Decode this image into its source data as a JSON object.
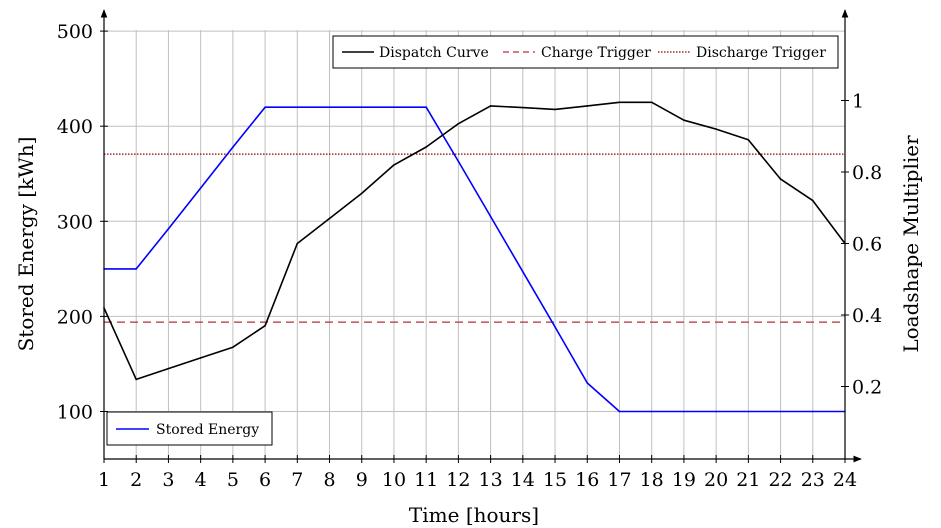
{
  "chart_data": {
    "type": "line",
    "x_label": "Time [hours]",
    "y_label_left": "Stored Energy [kWh]",
    "y_label_right": "Loadshape Multiplier",
    "x_ticks": [
      "1",
      "2",
      "3",
      "4",
      "5",
      "6",
      "7",
      "8",
      "9",
      "10",
      "11",
      "12",
      "13",
      "14",
      "15",
      "16",
      "17",
      "18",
      "19",
      "20",
      "21",
      "22",
      "23",
      "24"
    ],
    "y_left_ticks": [
      "100",
      "200",
      "300",
      "400",
      "500"
    ],
    "y_right_ticks": [
      "0.2",
      "0.4",
      "0.6",
      "0.8",
      "1"
    ],
    "x_range": [
      1,
      24
    ],
    "y_left_range": [
      50,
      500
    ],
    "y_right_range": [
      0.1,
      1.2
    ],
    "grid": true,
    "series": [
      {
        "name": "Stored Energy",
        "axis": "left",
        "color": "#0000ff",
        "x": [
          1,
          2,
          3,
          4,
          5,
          6,
          7,
          8,
          9,
          10,
          11,
          12,
          13,
          14,
          15,
          16,
          17,
          18,
          19,
          20,
          21,
          22,
          23,
          24
        ],
        "values": [
          250,
          250,
          292,
          335,
          378,
          420,
          420,
          420,
          420,
          420,
          420,
          363,
          305,
          247,
          189,
          130,
          100,
          100,
          100,
          100,
          100,
          100,
          100,
          100
        ]
      },
      {
        "name": "Dispatch Curve",
        "axis": "right",
        "color": "#000000",
        "x": [
          1,
          2,
          3,
          4,
          5,
          6,
          7,
          8,
          9,
          10,
          11,
          12,
          13,
          14,
          15,
          16,
          17,
          18,
          19,
          20,
          21,
          22,
          23,
          24
        ],
        "values": [
          0.42,
          0.22,
          0.25,
          0.28,
          0.31,
          0.37,
          0.6,
          0.67,
          0.74,
          0.82,
          0.87,
          0.935,
          0.985,
          0.98,
          0.975,
          0.985,
          0.995,
          0.995,
          0.945,
          0.92,
          0.89,
          0.78,
          0.72,
          0.6
        ]
      }
    ],
    "thresholds": [
      {
        "name": "Charge Trigger",
        "axis": "right",
        "value": 0.38,
        "color": "#b0303a",
        "style": "dashed"
      },
      {
        "name": "Discharge Trigger",
        "axis": "right",
        "value": 0.85,
        "color": "#8b0000",
        "style": "dotted"
      }
    ],
    "legend_top": {
      "placement": "top-right",
      "items": [
        {
          "label": "Dispatch Curve",
          "color": "#000000",
          "style": "solid"
        },
        {
          "label": "Charge Trigger",
          "color": "#b0303a",
          "style": "dashed"
        },
        {
          "label": "Discharge Trigger",
          "color": "#8b0000",
          "style": "dotted"
        }
      ]
    },
    "legend_bottom": {
      "placement": "bottom-left",
      "items": [
        {
          "label": "Stored Energy",
          "color": "#0000ff",
          "style": "solid"
        }
      ]
    }
  }
}
